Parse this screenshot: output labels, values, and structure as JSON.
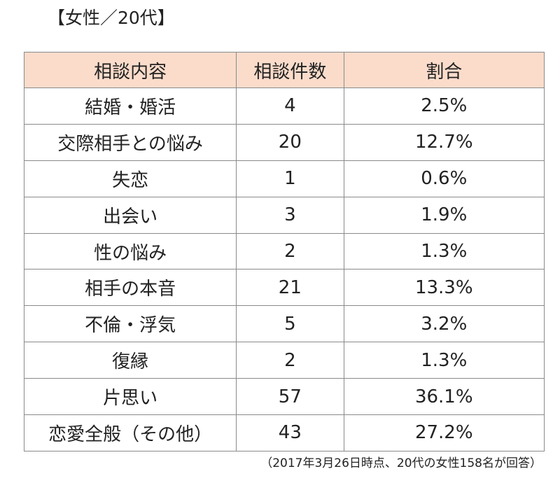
{
  "title": "【女性／20代】",
  "headers": [
    "相談内容",
    "相談件数",
    "割合"
  ],
  "rows": [
    [
      "結婚・婚活",
      "4",
      "2.5%"
    ],
    [
      "交際相手との悩み",
      "20",
      "12.7%"
    ],
    [
      "失恋",
      "1",
      "0.6%"
    ],
    [
      "出会い",
      "3",
      "1.9%"
    ],
    [
      "性の悩み",
      "2",
      "1.3%"
    ],
    [
      "相手の本音",
      "21",
      "13.3%"
    ],
    [
      "不倫・浮気",
      "5",
      "3.2%"
    ],
    [
      "復縁",
      "2",
      "1.3%"
    ],
    [
      "片思い",
      "57",
      "36.1%"
    ],
    [
      "恋愛全般（その他）",
      "43",
      "27.2%"
    ]
  ],
  "note": "（2017年3月26日時点、20代の女性158名が回答）",
  "colors": {
    "header_bg": "#fbdccb",
    "border": "#8a8a8a"
  }
}
